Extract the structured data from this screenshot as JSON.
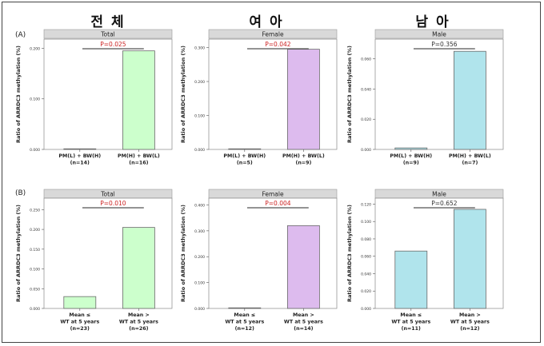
{
  "column_titles": [
    "전 체",
    "여 아",
    "남 아"
  ],
  "row_labels": [
    "(A)",
    "(B)"
  ],
  "colors": {
    "total": "#ccffcc",
    "female": "#ddbbee",
    "male": "#b0e4ec",
    "pvalue_sig": "#cc2222",
    "pvalue_ns": "#333333",
    "strip": "#d9d9d9"
  },
  "chart_data": [
    {
      "type": "bar",
      "row": "A",
      "title": "Total",
      "pvalue": "P=0.025",
      "significant": true,
      "color": "total",
      "ylabel": "Ratio of ARRDC3 methylation (%)",
      "ylim": [
        0,
        0.215
      ],
      "yticks": [
        "0.000",
        "0.100",
        "0.200"
      ],
      "ytick_values": [
        0,
        0.1,
        0.2
      ],
      "categories": [
        [
          "PM(L) + BW(H)",
          "(n=14)"
        ],
        [
          "PM(H) + BW(L)",
          "(n=16)"
        ]
      ],
      "values": [
        0.0005,
        0.195
      ]
    },
    {
      "type": "bar",
      "row": "A",
      "title": "Female",
      "pvalue": "P=0.042",
      "significant": true,
      "color": "female",
      "ylabel": "Ratio of ARRDC3 methylation (%)",
      "ylim": [
        0,
        0.32
      ],
      "yticks": [
        "0.000",
        "0.100",
        "0.200",
        "0.300"
      ],
      "ytick_values": [
        0,
        0.1,
        0.2,
        0.3
      ],
      "categories": [
        [
          "PM(L) + BW(H)",
          "(n=5)"
        ],
        [
          "PM(H) + BW(L)",
          "(n=9)"
        ]
      ],
      "values": [
        0.0005,
        0.295
      ]
    },
    {
      "type": "bar",
      "row": "A",
      "title": "Male",
      "pvalue": "P=0.356",
      "significant": false,
      "color": "male",
      "ylabel": "Ratio of ARRDC3 methylation (%)",
      "ylim": [
        0,
        0.072
      ],
      "yticks": [
        "0.000",
        "0.020",
        "0.040",
        "0.060"
      ],
      "ytick_values": [
        0,
        0.02,
        0.04,
        0.06
      ],
      "categories": [
        [
          "PM(L) + BW(H)",
          "(n=9)"
        ],
        [
          "PM(H) + BW(L)",
          "(n=7)"
        ]
      ],
      "values": [
        0.001,
        0.065
      ]
    },
    {
      "type": "bar",
      "row": "B",
      "title": "Total",
      "pvalue": "P=0.010",
      "significant": true,
      "color": "total",
      "ylabel": "Ratio of ARRDC3 methylation (%)",
      "ylim": [
        0,
        0.275
      ],
      "yticks": [
        "0.000",
        "0.050",
        "0.100",
        "0.150",
        "0.200",
        "0.250"
      ],
      "ytick_values": [
        0,
        0.05,
        0.1,
        0.15,
        0.2,
        0.25
      ],
      "categories": [
        [
          "Mean ≤",
          "WT at 5 years",
          "(n=23)"
        ],
        [
          "Mean >",
          "WT at 5 years",
          "(n=26)"
        ]
      ],
      "values": [
        0.03,
        0.205
      ]
    },
    {
      "type": "bar",
      "row": "B",
      "title": "Female",
      "pvalue": "P=0.004",
      "significant": true,
      "color": "female",
      "ylabel": "Ratio of ARRDC3 methylation (%)",
      "ylim": [
        0,
        0.42
      ],
      "yticks": [
        "0.000",
        "0.100",
        "0.200",
        "0.300",
        "0.400"
      ],
      "ytick_values": [
        0,
        0.1,
        0.2,
        0.3,
        0.4
      ],
      "categories": [
        [
          "Mean ≤",
          "WT at 5 years",
          "(n=12)"
        ],
        [
          "Mean >",
          "WT at 5 years",
          "(n=14)"
        ]
      ],
      "values": [
        0.0005,
        0.32
      ]
    },
    {
      "type": "bar",
      "row": "B",
      "title": "Male",
      "pvalue": "P=0.652",
      "significant": false,
      "color": "male",
      "ylabel": "Ratio of ARRDC3 methylation (%)",
      "ylim": [
        0,
        0.125
      ],
      "yticks": [
        "0.000",
        "0.020",
        "0.040",
        "0.060",
        "0.080",
        "0.100",
        "0.120"
      ],
      "ytick_values": [
        0,
        0.02,
        0.04,
        0.06,
        0.08,
        0.1,
        0.12
      ],
      "categories": [
        [
          "Mean ≤",
          "WT at 5 years",
          "(n=11)"
        ],
        [
          "Mean >",
          "WT at 5 years",
          "(n=12)"
        ]
      ],
      "values": [
        0.066,
        0.114
      ]
    }
  ]
}
